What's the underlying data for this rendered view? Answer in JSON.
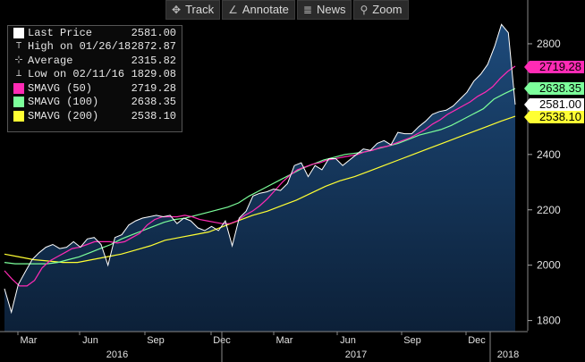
{
  "toolbar": {
    "buttons": [
      {
        "label": "Track",
        "icon": "crosshair-icon",
        "glyph": "✥"
      },
      {
        "label": "Annotate",
        "icon": "pencil-icon",
        "glyph": "∠"
      },
      {
        "label": "News",
        "icon": "news-icon",
        "glyph": "≣"
      },
      {
        "label": "Zoom",
        "icon": "magnifier-icon",
        "glyph": "⚲"
      }
    ]
  },
  "legend": {
    "rows": [
      {
        "label": "Last Price",
        "value": "2581.00",
        "icon": "white-square",
        "color": "#ffffff"
      },
      {
        "label": "High on 01/26/18",
        "value": "2872.87",
        "icon": "high-marker",
        "color": "#cccccc"
      },
      {
        "label": "Average",
        "value": "2315.82",
        "icon": "average-marker",
        "color": "#cccccc"
      },
      {
        "label": "Low on 02/11/16",
        "value": "1829.08",
        "icon": "low-marker",
        "color": "#cccccc"
      },
      {
        "label": "SMAVG (50)",
        "value": "2719.28",
        "icon": "magenta-square",
        "color": "#ff2bb5"
      },
      {
        "label": "SMAVG (100)",
        "value": "2638.35",
        "icon": "green-square",
        "color": "#7cff9b"
      },
      {
        "label": "SMAVG (200)",
        "value": "2538.10",
        "icon": "yellow-square",
        "color": "#ffff33"
      }
    ]
  },
  "price_tags": [
    {
      "label": "2719.28",
      "value": 2719.28,
      "bg": "#ff2bb5",
      "fg": "#000000"
    },
    {
      "label": "2638.35",
      "value": 2638.35,
      "bg": "#7cff9b",
      "fg": "#000000"
    },
    {
      "label": "2581.00",
      "value": 2581.0,
      "bg": "#ffffff",
      "fg": "#000000"
    },
    {
      "label": "2538.10",
      "value": 2538.1,
      "bg": "#ffff33",
      "fg": "#000000"
    }
  ],
  "chart_data": {
    "type": "line",
    "y_ticks": [
      1800,
      2000,
      2200,
      2400,
      2800
    ],
    "ylim": [
      1760,
      2900
    ],
    "x_month_labels": [
      "Mar",
      "Jun",
      "Sep",
      "Dec",
      "Mar",
      "Jun",
      "Sep",
      "Dec"
    ],
    "x_year_labels": [
      "2016",
      "2017",
      "2018"
    ],
    "grid": false,
    "colors": {
      "price": "#ffffff",
      "fill": "#163a63",
      "sma50": "#ff2bb5",
      "sma100": "#7cff9b",
      "sma200": "#ffff33"
    },
    "price": [
      1915,
      1830,
      1930,
      1975,
      2020,
      2045,
      2065,
      2075,
      2060,
      2065,
      2085,
      2065,
      2095,
      2100,
      2075,
      2000,
      2100,
      2110,
      2145,
      2160,
      2170,
      2175,
      2180,
      2175,
      2180,
      2150,
      2170,
      2160,
      2135,
      2125,
      2140,
      2125,
      2160,
      2070,
      2170,
      2195,
      2250,
      2260,
      2265,
      2275,
      2270,
      2295,
      2360,
      2370,
      2320,
      2360,
      2345,
      2385,
      2385,
      2360,
      2380,
      2400,
      2420,
      2415,
      2440,
      2450,
      2435,
      2480,
      2475,
      2475,
      2500,
      2520,
      2545,
      2555,
      2560,
      2575,
      2600,
      2625,
      2665,
      2690,
      2725,
      2790,
      2870,
      2840,
      2580
    ],
    "sma50": [
      1980,
      1950,
      1925,
      1925,
      1945,
      1990,
      2015,
      2030,
      2045,
      2060,
      2065,
      2075,
      2085,
      2085,
      2085,
      2080,
      2085,
      2100,
      2115,
      2145,
      2165,
      2175,
      2175,
      2175,
      2180,
      2175,
      2165,
      2160,
      2155,
      2150,
      2150,
      2160,
      2180,
      2195,
      2215,
      2240,
      2270,
      2300,
      2325,
      2345,
      2355,
      2365,
      2370,
      2380,
      2385,
      2390,
      2395,
      2400,
      2410,
      2415,
      2425,
      2430,
      2440,
      2450,
      2460,
      2475,
      2490,
      2510,
      2525,
      2545,
      2560,
      2575,
      2590,
      2610,
      2625,
      2645,
      2675,
      2700,
      2719
    ],
    "sma100": [
      2010,
      2005,
      2005,
      2005,
      2005,
      2010,
      2020,
      2030,
      2045,
      2060,
      2075,
      2095,
      2110,
      2125,
      2140,
      2155,
      2165,
      2170,
      2180,
      2190,
      2200,
      2210,
      2225,
      2250,
      2270,
      2290,
      2310,
      2330,
      2350,
      2365,
      2380,
      2390,
      2400,
      2405,
      2410,
      2420,
      2430,
      2440,
      2455,
      2470,
      2480,
      2490,
      2505,
      2525,
      2545,
      2565,
      2600,
      2620,
      2638
    ],
    "sma200": [
      2040,
      2030,
      2020,
      2015,
      2010,
      2010,
      2020,
      2030,
      2040,
      2055,
      2070,
      2090,
      2100,
      2110,
      2120,
      2140,
      2160,
      2180,
      2195,
      2215,
      2235,
      2260,
      2285,
      2305,
      2320,
      2340,
      2360,
      2380,
      2400,
      2420,
      2440,
      2460,
      2480,
      2500,
      2520,
      2538
    ]
  }
}
